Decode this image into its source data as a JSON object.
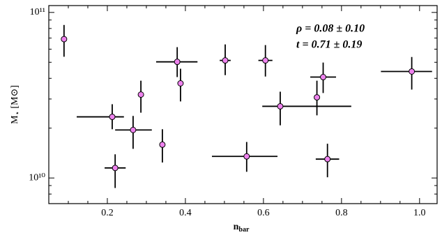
{
  "chart_data": {
    "type": "scatter",
    "xlabel": {
      "text": "n",
      "sub": "bar"
    },
    "ylabel": {
      "text": "M",
      "sub": "⋆",
      "rest": " [M⊙]"
    },
    "annotations": [
      "ρ = 0.08 ± 0.10",
      "t = 0.71 ± 0.19"
    ],
    "color": "#ee82ee",
    "x": [
      0.089,
      0.2125,
      0.266,
      0.22,
      0.286,
      0.341,
      0.379,
      0.3875,
      0.502,
      0.557,
      0.605,
      0.643,
      0.737,
      0.753,
      0.764,
      0.98
    ],
    "values": [
      69000000000,
      23400000000,
      19500000000,
      11500000000,
      31900000000,
      15900000000,
      50300000000,
      37300000000,
      51300000000,
      13500000000,
      51300000000,
      27100000000,
      30700000000,
      40700000000,
      13000000000,
      44000000000
    ],
    "yerr_minus": [
      15000000000,
      3700000000,
      4500000000,
      2800000000,
      7100000000,
      3500000000,
      9600000000,
      8300000000,
      9500000000,
      2600000000,
      10300000000,
      6300000000,
      6800000000,
      8100000000,
      2900000000,
      9800000000
    ],
    "yerr_plus": [
      15000000000,
      4500000000,
      4200000000,
      2400000000,
      6800000000,
      3800000000,
      11400000000,
      8400000000,
      12800000000,
      3000000000,
      12200000000,
      6100000000,
      8000000000,
      9100000000,
      3100000000,
      9800000000
    ],
    "xerr_minus": [
      0,
      0.091,
      0.046,
      0.027,
      0,
      0,
      0.054,
      0,
      0.014,
      0.089,
      0.018,
      0.046,
      0,
      0.033,
      0.03,
      0.079
    ],
    "xerr_plus": [
      0,
      0.03,
      0.048,
      0.027,
      0,
      0,
      0.052,
      0,
      0.014,
      0.079,
      0.018,
      0.182,
      0,
      0.033,
      0.03,
      0.052
    ],
    "xlim": [
      0.05,
      1.045
    ],
    "ylim": [
      7000000000,
      110000000000
    ],
    "ylog": true,
    "xticks": [
      0.2,
      0.4,
      0.6,
      0.8,
      {
        "value": 1,
        "label": "1.0"
      }
    ],
    "xminorticks": [
      0.1,
      0.15,
      0.25,
      0.3,
      0.35,
      0.45,
      0.5,
      0.55,
      0.65,
      0.7,
      0.75,
      0.85,
      0.9,
      0.95
    ],
    "yticks": [
      {
        "value": 10000000000,
        "label": "10¹⁰"
      },
      {
        "value": 100000000000,
        "label": "10¹¹"
      }
    ],
    "yminorticks": [
      8000000000,
      9000000000,
      20000000000,
      30000000000,
      40000000000,
      50000000000,
      60000000000,
      70000000000,
      80000000000,
      90000000000
    ]
  }
}
